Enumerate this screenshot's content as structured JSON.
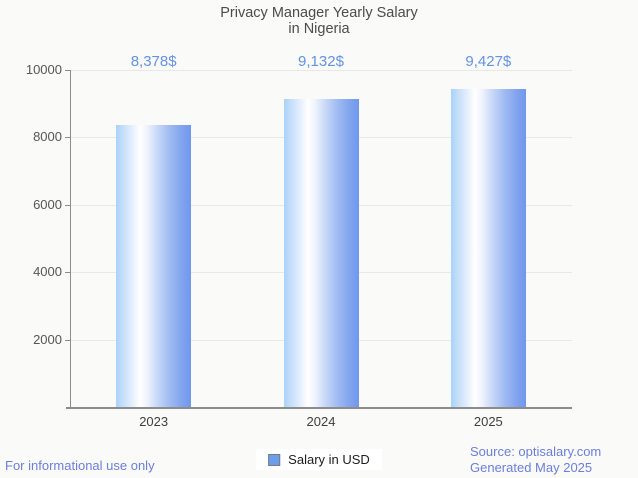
{
  "title": {
    "line1": "Privacy Manager Yearly Salary",
    "line2": "in Nigeria"
  },
  "chart_data": {
    "type": "bar",
    "categories": [
      "2023",
      "2024",
      "2025"
    ],
    "values": [
      8378,
      9132,
      9427
    ],
    "value_labels": [
      "8,378$",
      "9,132$",
      "9,427$"
    ],
    "title": "Privacy Manager Yearly Salary in Nigeria",
    "xlabel": "",
    "ylabel": "",
    "ylim": [
      0,
      10000
    ],
    "yticks": [
      2000,
      4000,
      6000,
      8000,
      10000
    ],
    "grid": true,
    "legend_position": "bottom",
    "series": [
      {
        "name": "Salary in USD",
        "values": [
          8378,
          9132,
          9427
        ]
      }
    ]
  },
  "legend": {
    "label": "Salary in USD"
  },
  "footer": {
    "left": "For informational use only",
    "source": "Source: optisalary.com",
    "generated": "Generated May 2025"
  },
  "colors": {
    "background": "#FAFAF9",
    "bar_light": "#ABD2F8",
    "bar_dark": "#6F97EC",
    "value_label": "#6492E2",
    "footer_text": "#6B7FD9",
    "gridline": "#E8E8E8",
    "axis": "#8C8C8C",
    "legend_swatch": "#6D9EEB"
  }
}
